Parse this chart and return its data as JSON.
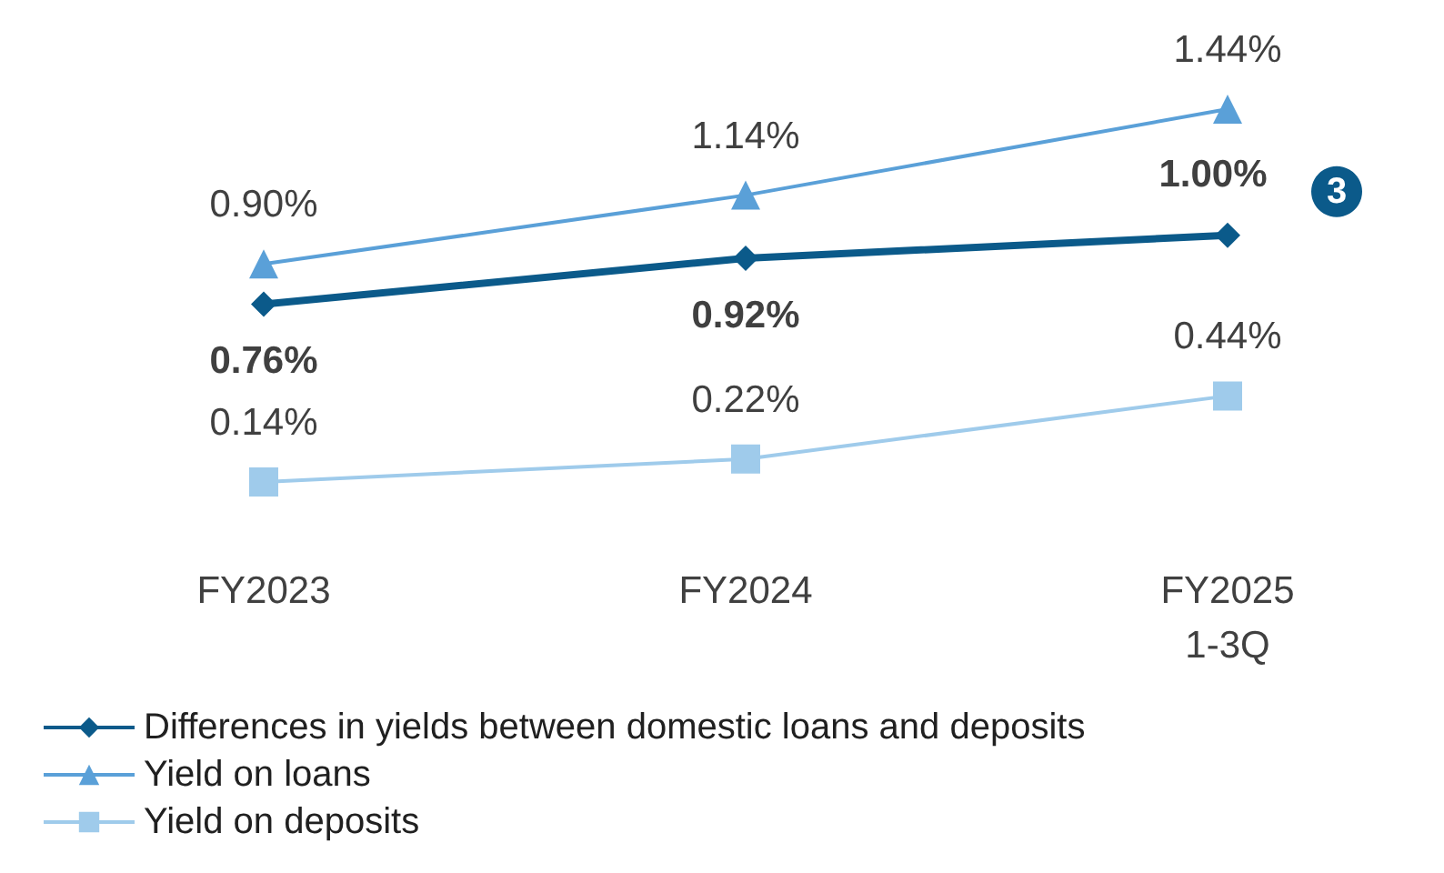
{
  "chart_data": {
    "type": "line",
    "categories": [
      "FY2023",
      "FY2024",
      "FY2025\n1-3Q"
    ],
    "series": [
      {
        "name": "Differences in yields between domestic loans and deposits",
        "color": "#0b5a8a",
        "values": [
          0.76,
          0.92,
          1.0
        ],
        "marker": "diamond",
        "value_labels": [
          "0.76%",
          "0.92%",
          "1.00%"
        ]
      },
      {
        "name": "Yield on loans",
        "color": "#5aa0d8",
        "values": [
          0.9,
          1.14,
          1.44
        ],
        "marker": "triangle",
        "value_labels": [
          "0.90%",
          "1.14%",
          "1.44%"
        ]
      },
      {
        "name": "Yield on deposits",
        "color": "#9fcbeb",
        "values": [
          0.14,
          0.22,
          0.44
        ],
        "marker": "square",
        "value_labels": [
          "0.14%",
          "0.22%",
          "0.44%"
        ]
      }
    ],
    "annotations": [
      "3"
    ],
    "legend": "bottom",
    "tick_labels": "x",
    "line_style": "solid"
  }
}
